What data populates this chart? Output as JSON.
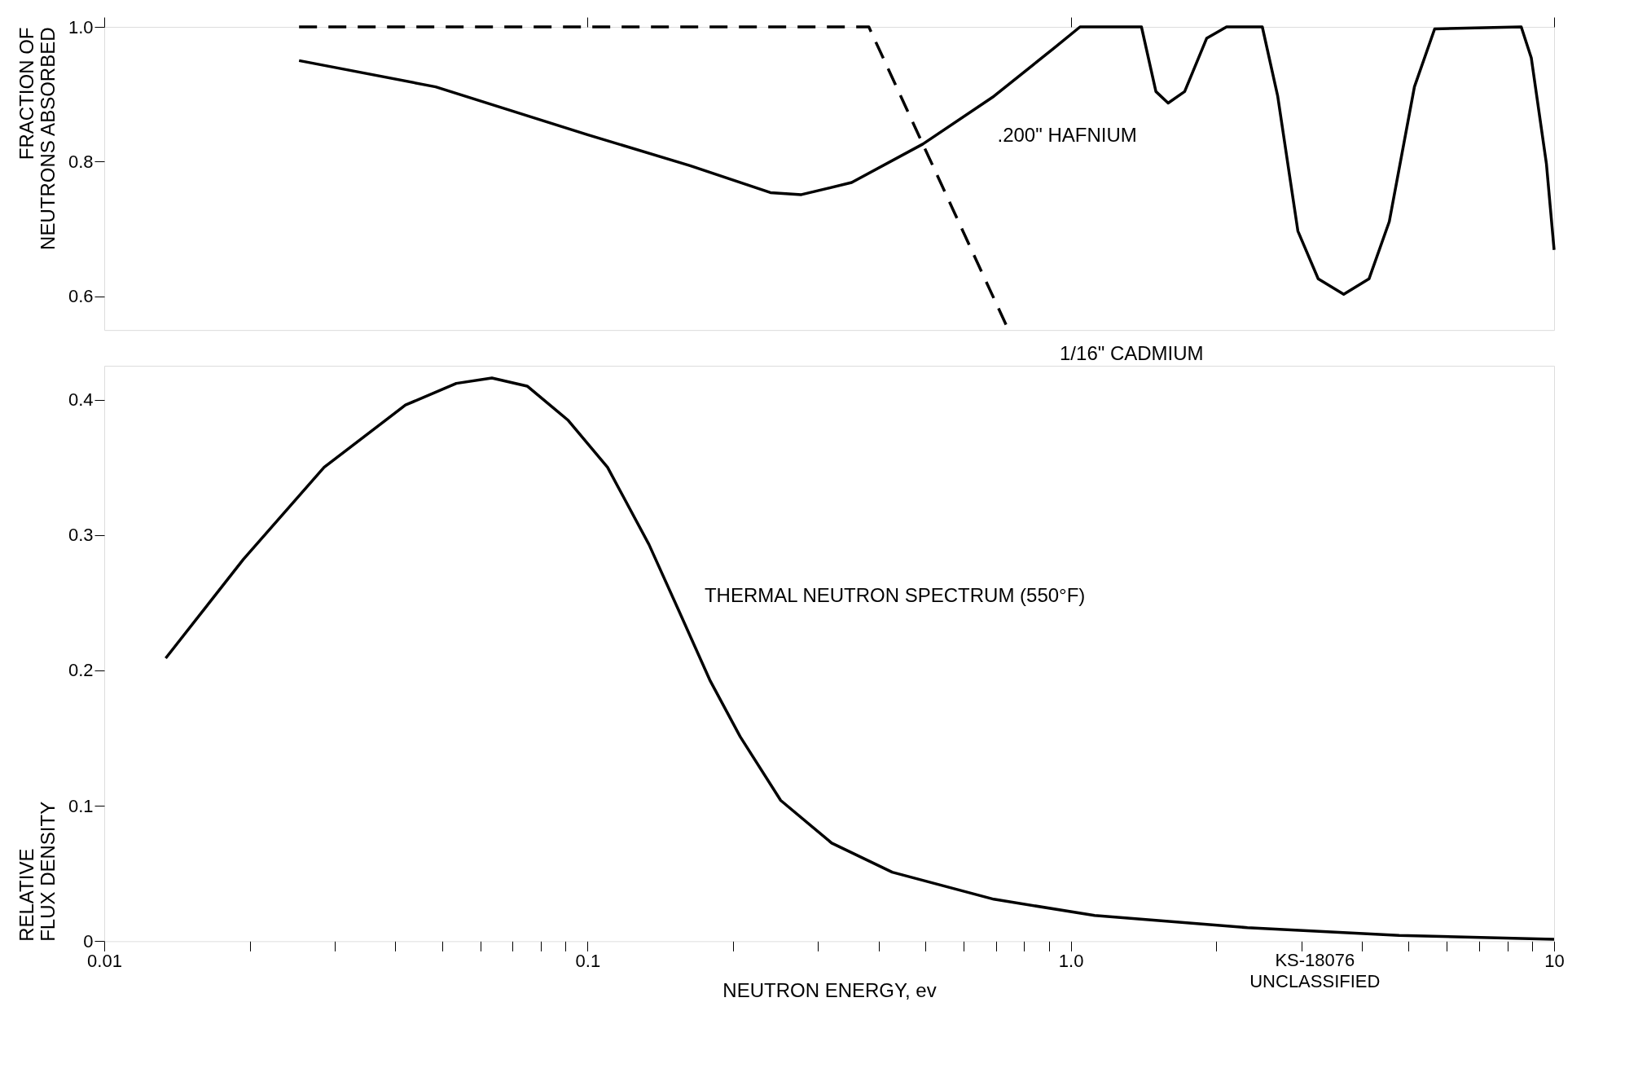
{
  "chart_data": [
    {
      "type": "line",
      "ylabel": "FRACTION OF\nNEUTRONS ABSORBED",
      "log": "x",
      "grid": false,
      "legend": false,
      "marker": "none",
      "tick_labels": "y",
      "xlim": [
        0.01,
        10
      ],
      "xticks": [
        0.01,
        0.1,
        1,
        10
      ],
      "ylim": [
        0.55,
        1.0
      ],
      "yticks": [
        0.6,
        0.8,
        {
          "value": 1.0,
          "label": "1.0"
        }
      ],
      "series": [
        {
          "name": ".200\" HAFNIUM",
          "color": "#000000",
          "line_style": "solid",
          "x": [
            0.0253,
            0.0485,
            0.1,
            0.163,
            0.239,
            0.277,
            0.352,
            0.494,
            0.693,
            0.925,
            1.045,
            1.29,
            1.4,
            1.5,
            1.59,
            1.72,
            1.91,
            2.1,
            2.49,
            2.68,
            2.95,
            3.25,
            3.67,
            4.14,
            4.56,
            5.14,
            5.66,
            8.55,
            8.97,
            9.64,
            10
          ],
          "values": [
            0.95,
            0.911,
            0.84,
            0.794,
            0.754,
            0.751,
            0.769,
            0.826,
            0.897,
            0.969,
            1.0,
            1.0,
            1.0,
            0.904,
            0.887,
            0.904,
            0.983,
            1.0,
            1.0,
            0.897,
            0.697,
            0.626,
            0.603,
            0.626,
            0.711,
            0.911,
            0.997,
            1.0,
            0.954,
            0.797,
            0.669
          ]
        },
        {
          "name": "1/16\" CADMIUM",
          "color": "#000000",
          "line_style": "dashed",
          "x": [
            0.0253,
            0.382,
            0.743
          ],
          "values": [
            1.0,
            1.0,
            0.55
          ]
        }
      ]
    },
    {
      "type": "line",
      "xlabel": "NEUTRON ENERGY, ev",
      "ylabel": "RELATIVE\nFLUX DENSITY",
      "log": "x",
      "grid": false,
      "legend": false,
      "marker": "none",
      "xlim": [
        0.01,
        10
      ],
      "xticks": [
        {
          "value": 0.01,
          "label": "0.01"
        },
        {
          "value": 0.02,
          "label": null
        },
        {
          "value": 0.03,
          "label": null
        },
        {
          "value": 0.04,
          "label": null
        },
        {
          "value": 0.05,
          "label": null
        },
        {
          "value": 0.06,
          "label": null
        },
        {
          "value": 0.07,
          "label": null
        },
        {
          "value": 0.08,
          "label": null
        },
        {
          "value": 0.09,
          "label": null
        },
        {
          "value": 0.1,
          "label": "0.1"
        },
        {
          "value": 0.2,
          "label": null
        },
        {
          "value": 0.3,
          "label": null
        },
        {
          "value": 0.4,
          "label": null
        },
        {
          "value": 0.5,
          "label": null
        },
        {
          "value": 0.6,
          "label": null
        },
        {
          "value": 0.7,
          "label": null
        },
        {
          "value": 0.8,
          "label": null
        },
        {
          "value": 0.9,
          "label": null
        },
        {
          "value": 1,
          "label": "1.0"
        },
        {
          "value": 2,
          "label": null
        },
        {
          "value": 3,
          "label": null
        },
        {
          "value": 4,
          "label": null
        },
        {
          "value": 5,
          "label": null
        },
        {
          "value": 6,
          "label": null
        },
        {
          "value": 7,
          "label": null
        },
        {
          "value": 8,
          "label": null
        },
        {
          "value": 9,
          "label": null
        },
        {
          "value": 10,
          "label": "10"
        }
      ],
      "ylim": [
        0,
        0.425
      ],
      "yticks": [
        0,
        0.1,
        0.2,
        0.3,
        0.4
      ],
      "series": [
        {
          "name": "THERMAL NEUTRON SPECTRUM (550°F)",
          "color": "#000000",
          "line_style": "solid",
          "x": [
            0.0134,
            0.0194,
            0.0285,
            0.042,
            0.0535,
            0.0634,
            0.075,
            0.091,
            0.11,
            0.134,
            0.155,
            0.179,
            0.207,
            0.251,
            0.32,
            0.427,
            0.693,
            1.12,
            2.32,
            4.78,
            10
          ],
          "values": [
            0.209,
            0.282,
            0.35,
            0.396,
            0.412,
            0.416,
            0.41,
            0.385,
            0.35,
            0.293,
            0.243,
            0.193,
            0.151,
            0.104,
            0.0725,
            0.051,
            0.031,
            0.019,
            0.01,
            0.0043,
            0.0014
          ]
        }
      ],
      "annotations": [
        "KS-18076\nUNCLASSIFIED"
      ]
    }
  ]
}
